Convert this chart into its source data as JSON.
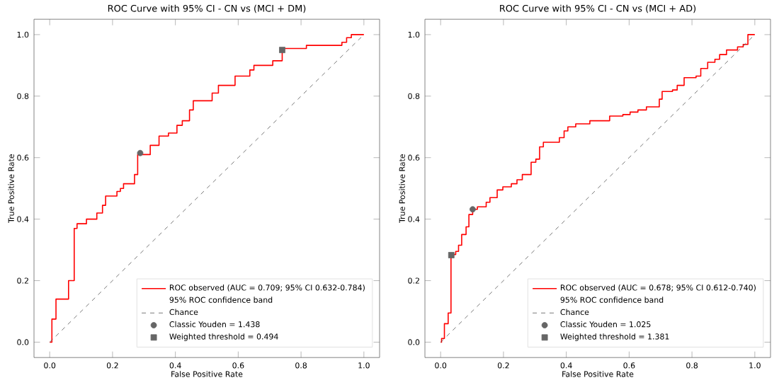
{
  "chart_data": [
    {
      "type": "step",
      "title": "ROC Curve with 95% CI - CN vs (MCI + DM)",
      "xlabel": "False Positive Rate",
      "ylabel": "True Positive Rate",
      "xlim": [
        -0.05,
        1.05
      ],
      "ylim": [
        -0.05,
        1.05
      ],
      "xticks": [
        {
          "value": 0,
          "label": "0.0"
        },
        {
          "value": 0.2,
          "label": "0.2"
        },
        {
          "value": 0.4,
          "label": "0.4"
        },
        {
          "value": 0.6,
          "label": "0.6"
        },
        {
          "value": 0.8,
          "label": "0.8"
        },
        {
          "value": 1,
          "label": "1.0"
        }
      ],
      "yticks": [
        {
          "value": 0,
          "label": "0.0"
        },
        {
          "value": 0.2,
          "label": "0.2"
        },
        {
          "value": 0.4,
          "label": "0.4"
        },
        {
          "value": 0.6,
          "label": "0.6"
        },
        {
          "value": 0.8,
          "label": "0.8"
        },
        {
          "value": 1,
          "label": "1.0"
        }
      ],
      "legend": "bottom right",
      "grid": false,
      "annotations": [
        "95% ROC confidence band"
      ],
      "series": [
        {
          "name": "ROC observed (AUC = 0.709; 95% CI 0.632-0.784)",
          "color": "#ff0000",
          "marker": "none",
          "line_style": "solid",
          "x": [
            0,
            0.007,
            0.02,
            0.06,
            0.078,
            0.087,
            0.117,
            0.15,
            0.168,
            0.178,
            0.214,
            0.225,
            0.235,
            0.27,
            0.28,
            0.32,
            0.348,
            0.378,
            0.405,
            0.422,
            0.445,
            0.457,
            0.517,
            0.537,
            0.59,
            0.637,
            0.65,
            0.71,
            0.74,
            0.817,
            0.93,
            0.945,
            0.96,
            1.0
          ],
          "values": [
            0,
            0.075,
            0.14,
            0.2,
            0.37,
            0.385,
            0.4,
            0.42,
            0.445,
            0.475,
            0.49,
            0.5,
            0.515,
            0.545,
            0.61,
            0.64,
            0.67,
            0.68,
            0.705,
            0.72,
            0.755,
            0.785,
            0.81,
            0.835,
            0.865,
            0.885,
            0.9,
            0.915,
            0.955,
            0.965,
            0.975,
            0.99,
            1.0,
            1.0
          ]
        },
        {
          "name": "Chance",
          "type": "line",
          "color": "#555555",
          "marker": "none",
          "line_style": "dashed",
          "x": [
            0,
            1
          ],
          "values": [
            0,
            1
          ]
        },
        {
          "name": "Classic Youden = 1.438",
          "type": "scatter",
          "color": "#666666",
          "marker": "circle",
          "x": [
            0.288
          ],
          "values": [
            0.615
          ]
        },
        {
          "name": "Weighted threshold = 0.494",
          "type": "scatter",
          "color": "#666666",
          "marker": "square",
          "x": [
            0.74
          ],
          "values": [
            0.95
          ]
        }
      ]
    },
    {
      "type": "step",
      "title": "ROC Curve with 95% CI - CN vs (MCI + AD)",
      "xlabel": "False Positive Rate",
      "ylabel": "True Positive Rate",
      "xlim": [
        -0.05,
        1.05
      ],
      "ylim": [
        -0.05,
        1.05
      ],
      "xticks": [
        {
          "value": 0,
          "label": "0.0"
        },
        {
          "value": 0.2,
          "label": "0.2"
        },
        {
          "value": 0.4,
          "label": "0.4"
        },
        {
          "value": 0.6,
          "label": "0.6"
        },
        {
          "value": 0.8,
          "label": "0.8"
        },
        {
          "value": 1,
          "label": "1.0"
        }
      ],
      "yticks": [
        {
          "value": 0,
          "label": "0.0"
        },
        {
          "value": 0.2,
          "label": "0.2"
        },
        {
          "value": 0.4,
          "label": "0.4"
        },
        {
          "value": 0.6,
          "label": "0.6"
        },
        {
          "value": 0.8,
          "label": "0.8"
        },
        {
          "value": 1,
          "label": "1.0"
        }
      ],
      "legend": "bottom right",
      "grid": false,
      "annotations": [
        "95% ROC confidence band"
      ],
      "series": [
        {
          "name": "ROC observed (AUC = 0.678; 95% CI 0.612-0.740)",
          "color": "#ff0000",
          "marker": "none",
          "line_style": "solid",
          "x": [
            0,
            0.003,
            0.012,
            0.024,
            0.033,
            0.048,
            0.057,
            0.067,
            0.081,
            0.09,
            0.102,
            0.117,
            0.145,
            0.157,
            0.18,
            0.198,
            0.225,
            0.243,
            0.26,
            0.288,
            0.303,
            0.315,
            0.327,
            0.378,
            0.393,
            0.405,
            0.43,
            0.475,
            0.538,
            0.58,
            0.603,
            0.628,
            0.655,
            0.696,
            0.705,
            0.738,
            0.753,
            0.775,
            0.813,
            0.828,
            0.85,
            0.873,
            0.888,
            0.91,
            0.945,
            0.963,
            0.978,
            1.0
          ],
          "values": [
            0,
            0.012,
            0.06,
            0.095,
            0.285,
            0.295,
            0.315,
            0.35,
            0.375,
            0.415,
            0.432,
            0.44,
            0.455,
            0.47,
            0.495,
            0.505,
            0.515,
            0.528,
            0.545,
            0.585,
            0.595,
            0.635,
            0.65,
            0.665,
            0.687,
            0.7,
            0.71,
            0.72,
            0.735,
            0.74,
            0.748,
            0.755,
            0.765,
            0.79,
            0.815,
            0.82,
            0.835,
            0.86,
            0.865,
            0.89,
            0.91,
            0.92,
            0.935,
            0.95,
            0.96,
            0.968,
            1.0,
            1.0
          ]
        },
        {
          "name": "Chance",
          "type": "line",
          "color": "#555555",
          "marker": "none",
          "line_style": "dashed",
          "x": [
            0,
            1
          ],
          "values": [
            0,
            1
          ]
        },
        {
          "name": "Classic Youden = 1.025",
          "type": "scatter",
          "color": "#666666",
          "marker": "circle",
          "x": [
            0.102
          ],
          "values": [
            0.432
          ]
        },
        {
          "name": "Weighted threshold = 1.381",
          "type": "scatter",
          "color": "#666666",
          "marker": "square",
          "x": [
            0.034
          ],
          "values": [
            0.283
          ]
        }
      ]
    }
  ]
}
